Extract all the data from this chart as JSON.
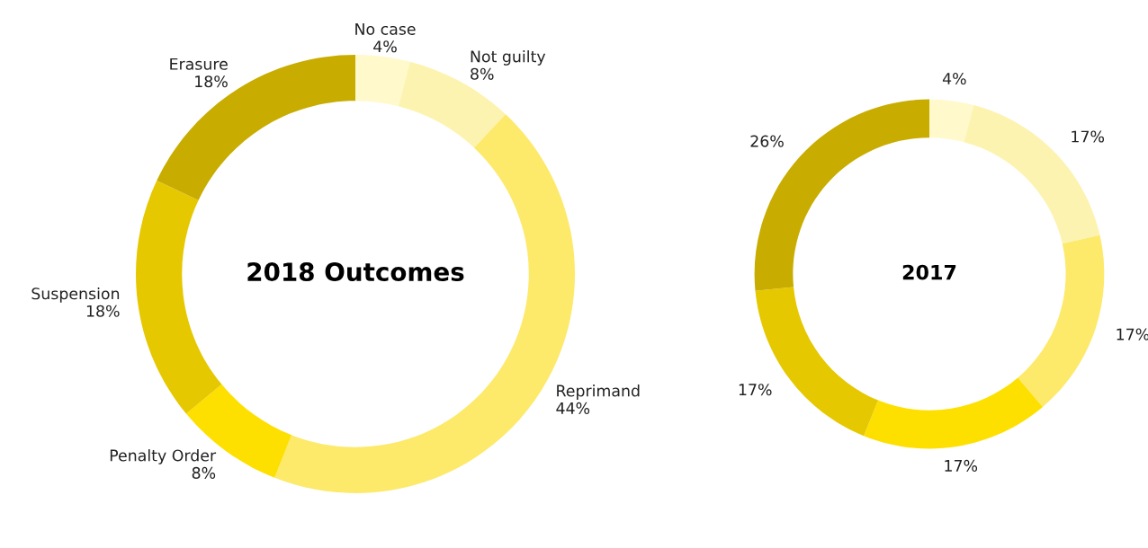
{
  "chart_data": [
    {
      "type": "donut",
      "title": "2018 Outcomes",
      "categories": [
        "No case",
        "Not guilty",
        "Reprimand",
        "Penalty Order",
        "Suspension",
        "Erasure"
      ],
      "values": [
        4,
        8,
        44,
        8,
        18,
        18
      ],
      "value_labels": [
        "4%",
        "8%",
        "44%",
        "8%",
        "18%",
        "18%"
      ],
      "colors": [
        "#fff9cc",
        "#fdf3b0",
        "#fde96a",
        "#fde000",
        "#e6c800",
        "#c8ad00"
      ]
    },
    {
      "type": "donut",
      "title": "2017",
      "categories": [
        null,
        null,
        null,
        null,
        null,
        null
      ],
      "values": [
        4,
        17,
        17,
        17,
        17,
        26
      ],
      "value_labels": [
        "4%",
        "17%",
        "17%",
        "17%",
        "17%",
        "26%"
      ],
      "colors": [
        "#fff9cc",
        "#fdf3b0",
        "#fde96a",
        "#fde000",
        "#e6c800",
        "#c8ad00"
      ]
    }
  ]
}
